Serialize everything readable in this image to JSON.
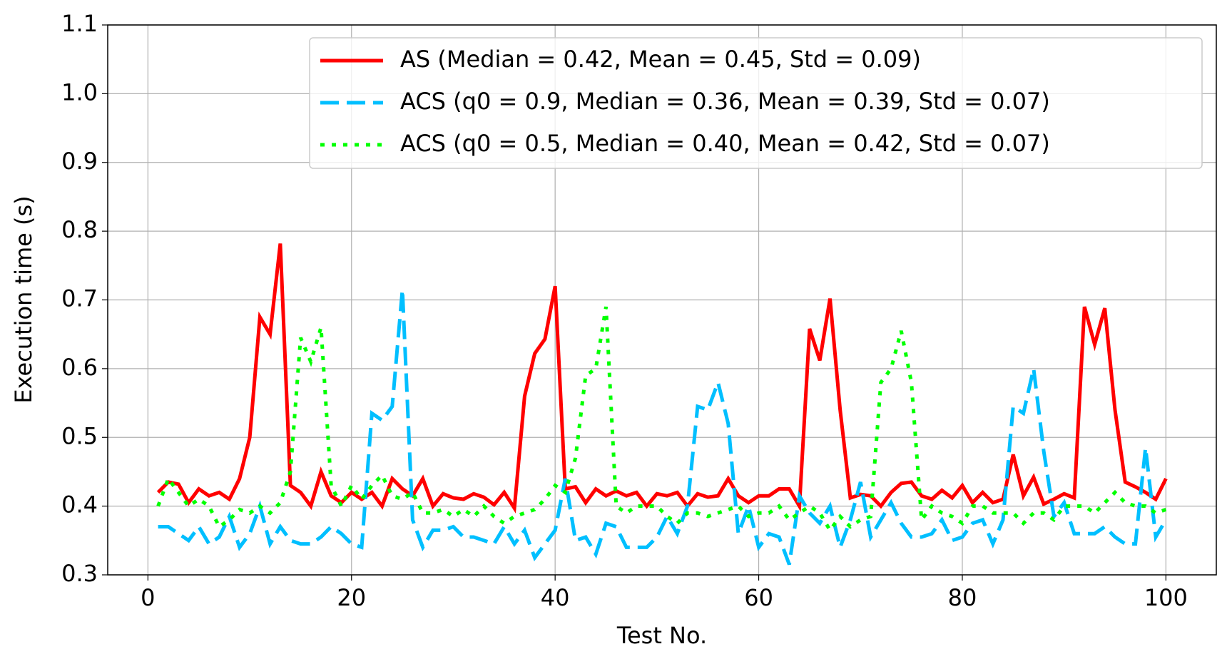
{
  "chart_data": {
    "type": "line",
    "x_label": "Test No.",
    "y_label": "Execution time (s)",
    "x": [
      1,
      2,
      3,
      4,
      5,
      6,
      7,
      8,
      9,
      10,
      11,
      12,
      13,
      14,
      15,
      16,
      17,
      18,
      19,
      20,
      21,
      22,
      23,
      24,
      25,
      26,
      27,
      28,
      29,
      30,
      31,
      32,
      33,
      34,
      35,
      36,
      37,
      38,
      39,
      40,
      41,
      42,
      43,
      44,
      45,
      46,
      47,
      48,
      49,
      50,
      51,
      52,
      53,
      54,
      55,
      56,
      57,
      58,
      59,
      60,
      61,
      62,
      63,
      64,
      65,
      66,
      67,
      68,
      69,
      70,
      71,
      72,
      73,
      74,
      75,
      76,
      77,
      78,
      79,
      80,
      81,
      82,
      83,
      84,
      85,
      86,
      87,
      88,
      89,
      90,
      91,
      92,
      93,
      94,
      95,
      96,
      97,
      98,
      99,
      100
    ],
    "series": [
      {
        "name": "AS (Median = 0.42, Mean = 0.45, Std = 0.09)",
        "color": "#ff0000",
        "linestyle": "solid",
        "values": [
          0.42,
          0.435,
          0.432,
          0.405,
          0.425,
          0.415,
          0.42,
          0.41,
          0.44,
          0.5,
          0.675,
          0.65,
          0.782,
          0.43,
          0.42,
          0.4,
          0.45,
          0.415,
          0.405,
          0.42,
          0.41,
          0.42,
          0.4,
          0.44,
          0.425,
          0.415,
          0.44,
          0.4,
          0.418,
          0.412,
          0.41,
          0.418,
          0.413,
          0.402,
          0.42,
          0.397,
          0.56,
          0.622,
          0.643,
          0.72,
          0.425,
          0.428,
          0.405,
          0.425,
          0.415,
          0.422,
          0.415,
          0.42,
          0.4,
          0.418,
          0.415,
          0.42,
          0.4,
          0.418,
          0.413,
          0.415,
          0.44,
          0.415,
          0.405,
          0.415,
          0.415,
          0.425,
          0.425,
          0.4,
          0.658,
          0.612,
          0.702,
          0.54,
          0.412,
          0.417,
          0.415,
          0.4,
          0.42,
          0.433,
          0.435,
          0.415,
          0.41,
          0.423,
          0.412,
          0.43,
          0.405,
          0.42,
          0.405,
          0.41,
          0.475,
          0.415,
          0.442,
          0.403,
          0.41,
          0.418,
          0.412,
          0.69,
          0.635,
          0.688,
          0.54,
          0.435,
          0.428,
          0.42,
          0.41,
          0.44
        ]
      },
      {
        "name": "ACS (q0 = 0.9, Median = 0.36, Mean = 0.39, Std = 0.07)",
        "color": "#00bfff",
        "linestyle": "dashed",
        "values": [
          0.37,
          0.37,
          0.36,
          0.35,
          0.37,
          0.345,
          0.355,
          0.385,
          0.34,
          0.36,
          0.4,
          0.345,
          0.37,
          0.35,
          0.345,
          0.345,
          0.355,
          0.37,
          0.36,
          0.345,
          0.34,
          0.535,
          0.525,
          0.545,
          0.715,
          0.38,
          0.34,
          0.365,
          0.365,
          0.37,
          0.355,
          0.355,
          0.35,
          0.345,
          0.37,
          0.345,
          0.365,
          0.325,
          0.345,
          0.365,
          0.44,
          0.35,
          0.355,
          0.33,
          0.375,
          0.37,
          0.34,
          0.34,
          0.34,
          0.355,
          0.385,
          0.36,
          0.4,
          0.545,
          0.54,
          0.58,
          0.52,
          0.36,
          0.4,
          0.34,
          0.36,
          0.355,
          0.315,
          0.415,
          0.39,
          0.375,
          0.4,
          0.34,
          0.38,
          0.435,
          0.355,
          0.38,
          0.405,
          0.375,
          0.355,
          0.355,
          0.36,
          0.38,
          0.35,
          0.355,
          0.375,
          0.38,
          0.345,
          0.38,
          0.545,
          0.535,
          0.6,
          0.48,
          0.385,
          0.405,
          0.36,
          0.36,
          0.36,
          0.37,
          0.355,
          0.345,
          0.345,
          0.485,
          0.355,
          0.38
        ]
      },
      {
        "name": "ACS (q0 = 0.5, Median = 0.40, Mean = 0.42, Std = 0.07)",
        "color": "#00ff00",
        "linestyle": "dotted",
        "values": [
          0.4,
          0.44,
          0.42,
          0.4,
          0.41,
          0.4,
          0.37,
          0.38,
          0.395,
          0.39,
          0.4,
          0.39,
          0.405,
          0.45,
          0.645,
          0.61,
          0.66,
          0.43,
          0.4,
          0.43,
          0.41,
          0.43,
          0.445,
          0.415,
          0.41,
          0.42,
          0.39,
          0.39,
          0.395,
          0.385,
          0.395,
          0.385,
          0.4,
          0.385,
          0.375,
          0.385,
          0.39,
          0.395,
          0.41,
          0.43,
          0.42,
          0.47,
          0.59,
          0.6,
          0.69,
          0.4,
          0.39,
          0.4,
          0.4,
          0.4,
          0.385,
          0.375,
          0.39,
          0.39,
          0.385,
          0.39,
          0.395,
          0.4,
          0.385,
          0.39,
          0.39,
          0.4,
          0.38,
          0.39,
          0.4,
          0.39,
          0.365,
          0.385,
          0.37,
          0.38,
          0.385,
          0.58,
          0.6,
          0.655,
          0.58,
          0.38,
          0.4,
          0.39,
          0.385,
          0.375,
          0.4,
          0.4,
          0.39,
          0.39,
          0.39,
          0.375,
          0.39,
          0.39,
          0.38,
          0.4,
          0.4,
          0.4,
          0.39,
          0.405,
          0.42,
          0.405,
          0.4,
          0.4,
          0.39,
          0.395
        ]
      }
    ],
    "xlim": [
      -3.95,
      104.95
    ],
    "xticks": [
      0,
      20,
      40,
      60,
      80,
      100
    ],
    "ylim": [
      0.3,
      1.1
    ],
    "yticks": [
      0.3,
      0.4,
      0.5,
      0.6,
      0.7,
      0.8,
      0.9,
      {
        "value": 1,
        "label": "1.0"
      },
      {
        "value": 1.1,
        "label": "1.1"
      }
    ],
    "grid": true,
    "legend": "upper right"
  }
}
